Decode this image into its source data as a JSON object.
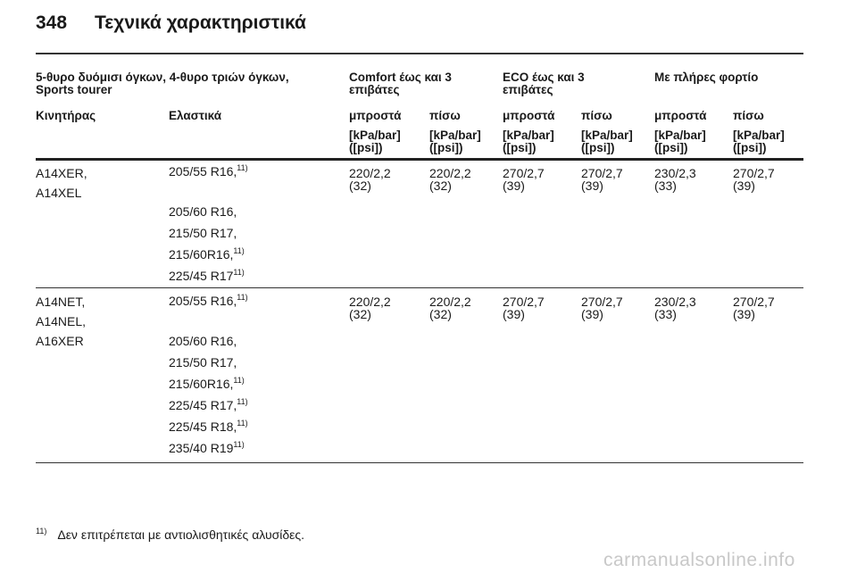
{
  "header": {
    "page_number": "348",
    "title": "Τεχνικά χαρακτηριστικά"
  },
  "columns": {
    "group": "5-θυρο δυόμισι όγκων, 4-θυρο τριών όγκων, Sports tourer",
    "comfort": "Comfort έως και 3 επιβάτες",
    "eco": "ECO έως και 3 επιβάτες",
    "full": "Με πλήρες φορτίο",
    "engine": "Κινητήρας",
    "tires": "Ελαστικά",
    "front": "μπροστά",
    "rear": "πίσω",
    "unit_line1": "[kPa/bar]",
    "unit_line2": "([psi])"
  },
  "rows": [
    {
      "engines": [
        "A14XER,",
        "A14XEL"
      ],
      "tires": [
        {
          "size": "205/55 R16,",
          "note": "11)"
        },
        {
          "size": "205/60 R16,",
          "note": ""
        },
        {
          "size": "215/50 R17,",
          "note": ""
        },
        {
          "size": "215/60R16,",
          "note": "11)"
        },
        {
          "size": "225/45 R17",
          "note": "11)"
        }
      ],
      "pressures": [
        {
          "v": "220/2,2",
          "psi": "(32)"
        },
        {
          "v": "220/2,2",
          "psi": "(32)"
        },
        {
          "v": "270/2,7",
          "psi": "(39)"
        },
        {
          "v": "270/2,7",
          "psi": "(39)"
        },
        {
          "v": "230/2,3",
          "psi": "(33)"
        },
        {
          "v": "270/2,7",
          "psi": "(39)"
        }
      ]
    },
    {
      "engines": [
        "A14NET,",
        "A14NEL,",
        "A16XER"
      ],
      "tires": [
        {
          "size": "205/55 R16,",
          "note": "11)"
        },
        {
          "size": "205/60 R16,",
          "note": ""
        },
        {
          "size": "215/50 R17,",
          "note": ""
        },
        {
          "size": "215/60R16,",
          "note": "11)"
        },
        {
          "size": "225/45 R17,",
          "note": "11)"
        },
        {
          "size": "225/45 R18,",
          "note": "11)"
        },
        {
          "size": "235/40 R19",
          "note": "11)"
        }
      ],
      "pressures": [
        {
          "v": "220/2,2",
          "psi": "(32)"
        },
        {
          "v": "220/2,2",
          "psi": "(32)"
        },
        {
          "v": "270/2,7",
          "psi": "(39)"
        },
        {
          "v": "270/2,7",
          "psi": "(39)"
        },
        {
          "v": "230/2,3",
          "psi": "(33)"
        },
        {
          "v": "270/2,7",
          "psi": "(39)"
        }
      ]
    }
  ],
  "footnote": {
    "mark": "11)",
    "text": "Δεν επιτρέπεται με αντιολισθητικές αλυσίδες."
  },
  "watermark": "carmanualsonline.info"
}
